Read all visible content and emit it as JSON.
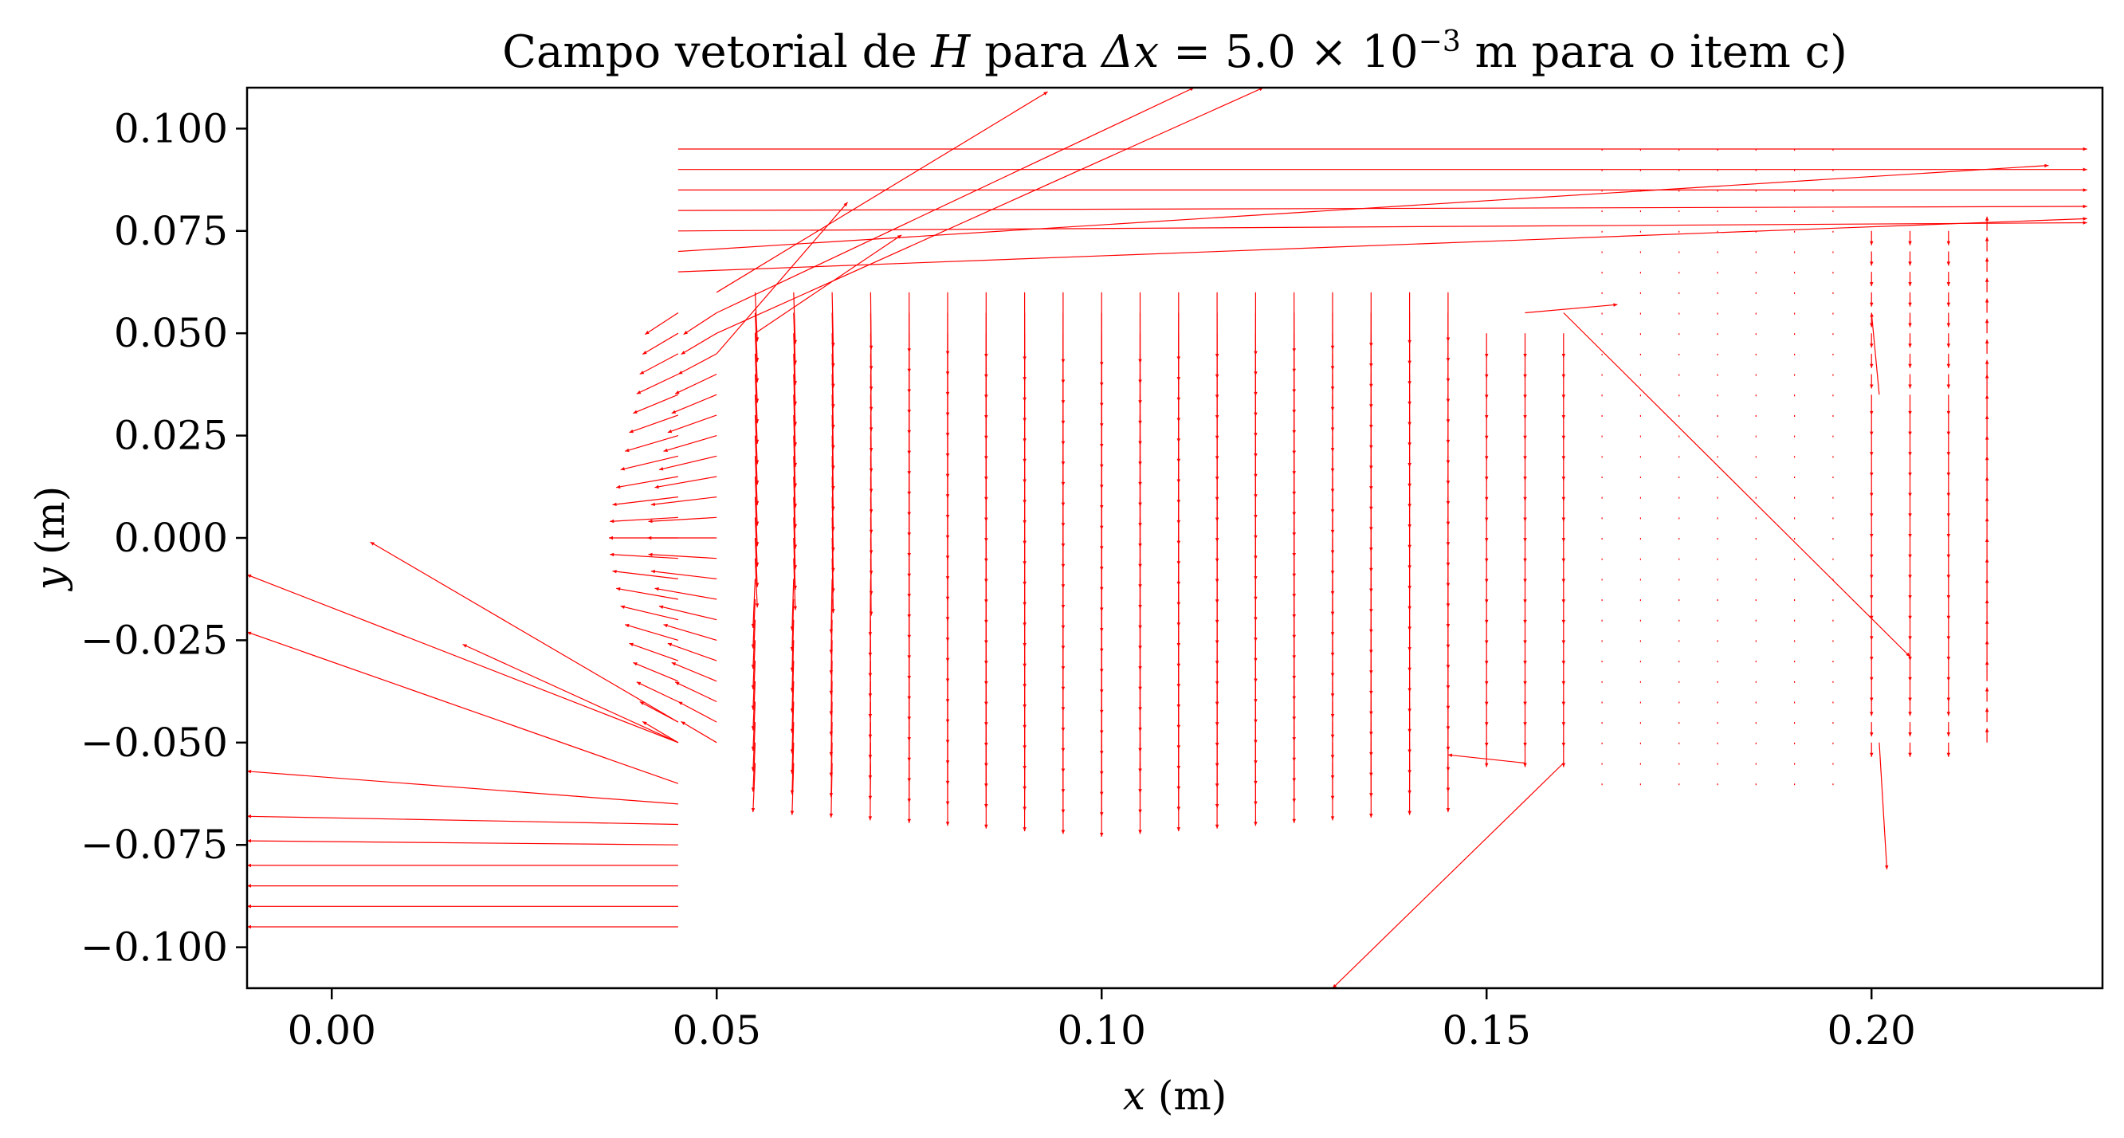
{
  "chart_data": {
    "type": "quiver",
    "title_parts": [
      "Campo vetorial de ",
      "H",
      " para ",
      "Δx",
      " = 5.0 × 10",
      "−3",
      " m para o item c)"
    ],
    "xlabel_parts": [
      "x",
      " (m)"
    ],
    "ylabel_parts": [
      "y",
      " (m)"
    ],
    "xlim": [
      -0.011,
      0.23
    ],
    "ylim": [
      -0.11,
      0.11
    ],
    "xticks": [
      0.0,
      0.05,
      0.1,
      0.15,
      0.2
    ],
    "xtick_labels": [
      "0.00",
      "0.05",
      "0.10",
      "0.15",
      "0.20"
    ],
    "yticks": [
      0.1,
      0.075,
      0.05,
      0.025,
      0.0,
      -0.025,
      -0.05,
      -0.075,
      -0.1
    ],
    "ytick_labels": [
      "0.100",
      "0.075",
      "0.050",
      "0.025",
      "0.000",
      "−0.025",
      "−0.050",
      "−0.075",
      "−0.100"
    ],
    "arrow_color": "#ff0000",
    "region": {
      "x": [
        0.045,
        0.215
      ],
      "y": [
        -0.06,
        0.095
      ]
    },
    "long_vectors": [
      {
        "x0": 0.045,
        "y0": 0.095,
        "x1": 0.228,
        "y1": 0.095
      },
      {
        "x0": 0.045,
        "y0": 0.09,
        "x1": 0.228,
        "y1": 0.09
      },
      {
        "x0": 0.045,
        "y0": 0.085,
        "x1": 0.228,
        "y1": 0.085
      },
      {
        "x0": 0.045,
        "y0": 0.08,
        "x1": 0.228,
        "y1": 0.081
      },
      {
        "x0": 0.045,
        "y0": 0.075,
        "x1": 0.228,
        "y1": 0.077
      },
      {
        "x0": 0.045,
        "y0": 0.07,
        "x1": 0.223,
        "y1": 0.091
      },
      {
        "x0": 0.045,
        "y0": 0.065,
        "x1": 0.228,
        "y1": 0.078
      },
      {
        "x0": 0.05,
        "y0": 0.06,
        "x1": 0.093,
        "y1": 0.109
      },
      {
        "x0": 0.05,
        "y0": 0.055,
        "x1": 0.112,
        "y1": 0.11
      },
      {
        "x0": 0.05,
        "y0": 0.05,
        "x1": 0.121,
        "y1": 0.11
      },
      {
        "x0": 0.05,
        "y0": 0.045,
        "x1": 0.067,
        "y1": 0.082
      },
      {
        "x0": 0.055,
        "y0": 0.05,
        "x1": 0.074,
        "y1": 0.074
      },
      {
        "x0": 0.045,
        "y0": -0.05,
        "x1": -0.011,
        "y1": -0.009
      },
      {
        "x0": 0.045,
        "y0": -0.06,
        "x1": -0.011,
        "y1": -0.023
      },
      {
        "x0": 0.045,
        "y0": -0.045,
        "x1": 0.005,
        "y1": -0.001
      },
      {
        "x0": 0.045,
        "y0": -0.05,
        "x1": 0.017,
        "y1": -0.026
      },
      {
        "x0": 0.045,
        "y0": -0.065,
        "x1": -0.011,
        "y1": -0.057
      },
      {
        "x0": 0.045,
        "y0": -0.07,
        "x1": -0.011,
        "y1": -0.068
      },
      {
        "x0": 0.045,
        "y0": -0.075,
        "x1": -0.011,
        "y1": -0.074
      },
      {
        "x0": 0.045,
        "y0": -0.08,
        "x1": -0.011,
        "y1": -0.08
      },
      {
        "x0": 0.045,
        "y0": -0.085,
        "x1": -0.011,
        "y1": -0.085
      },
      {
        "x0": 0.045,
        "y0": -0.09,
        "x1": -0.011,
        "y1": -0.09
      },
      {
        "x0": 0.045,
        "y0": -0.095,
        "x1": -0.011,
        "y1": -0.095
      },
      {
        "x0": 0.16,
        "y0": 0.055,
        "x1": 0.205,
        "y1": -0.029
      },
      {
        "x0": 0.16,
        "y0": -0.055,
        "x1": 0.13,
        "y1": -0.11
      },
      {
        "x0": 0.155,
        "y0": 0.055,
        "x1": 0.167,
        "y1": 0.057
      },
      {
        "x0": 0.155,
        "y0": -0.055,
        "x1": 0.145,
        "y1": -0.053
      },
      {
        "x0": 0.201,
        "y0": 0.035,
        "x1": 0.2,
        "y1": 0.055
      },
      {
        "x0": 0.201,
        "y0": -0.05,
        "x1": 0.202,
        "y1": -0.081
      }
    ]
  }
}
